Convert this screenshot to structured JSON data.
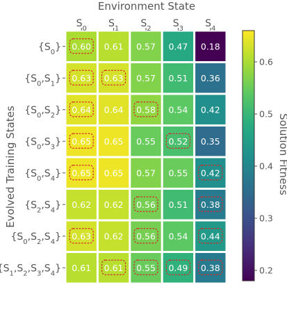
{
  "chart_data": {
    "type": "heatmap",
    "title": "",
    "xlabel": "Environment State",
    "ylabel": "Evolved Training States",
    "colorbar_label": "Solution Fitness",
    "colormap": "viridis",
    "clim": [
      0.18,
      0.66
    ],
    "x_categories": [
      {
        "base": "S",
        "sub": "0"
      },
      {
        "base": "S",
        "sub": "1"
      },
      {
        "base": "S",
        "sub": "2"
      },
      {
        "base": "S",
        "sub": "3"
      },
      {
        "base": "S",
        "sub": "4"
      }
    ],
    "y_categories": [
      {
        "parts": [
          {
            "t": "{S"
          },
          {
            "s": "0"
          },
          {
            "t": "}"
          }
        ]
      },
      {
        "parts": [
          {
            "t": "{S"
          },
          {
            "s": "0"
          },
          {
            "t": ",S"
          },
          {
            "s": "1"
          },
          {
            "t": "}"
          }
        ]
      },
      {
        "parts": [
          {
            "t": "{S"
          },
          {
            "s": "0"
          },
          {
            "t": ",S"
          },
          {
            "s": "2"
          },
          {
            "t": "}"
          }
        ]
      },
      {
        "parts": [
          {
            "t": "{S"
          },
          {
            "s": "0"
          },
          {
            "t": ",S"
          },
          {
            "s": "3"
          },
          {
            "t": "}"
          }
        ]
      },
      {
        "parts": [
          {
            "t": "{S"
          },
          {
            "s": "0"
          },
          {
            "t": ",S"
          },
          {
            "s": "4"
          },
          {
            "t": "}"
          }
        ]
      },
      {
        "parts": [
          {
            "t": "{S"
          },
          {
            "s": "2"
          },
          {
            "t": ",S"
          },
          {
            "s": "4"
          },
          {
            "t": "}"
          }
        ]
      },
      {
        "parts": [
          {
            "t": "{S"
          },
          {
            "s": "0"
          },
          {
            "t": ",S"
          },
          {
            "s": "2"
          },
          {
            "t": ",S"
          },
          {
            "s": "4"
          },
          {
            "t": "}"
          }
        ]
      },
      {
        "parts": [
          {
            "t": "{S"
          },
          {
            "s": "1"
          },
          {
            "t": ",S"
          },
          {
            "s": "2"
          },
          {
            "t": ",S"
          },
          {
            "s": "3"
          },
          {
            "t": ",S"
          },
          {
            "s": "4"
          },
          {
            "t": "}"
          }
        ]
      }
    ],
    "values": [
      [
        0.6,
        0.61,
        0.57,
        0.47,
        0.18
      ],
      [
        0.63,
        0.63,
        0.57,
        0.51,
        0.36
      ],
      [
        0.64,
        0.64,
        0.58,
        0.54,
        0.42
      ],
      [
        0.65,
        0.65,
        0.55,
        0.52,
        0.35
      ],
      [
        0.65,
        0.65,
        0.57,
        0.55,
        0.42
      ],
      [
        0.62,
        0.62,
        0.56,
        0.51,
        0.38
      ],
      [
        0.63,
        0.62,
        0.56,
        0.54,
        0.44
      ],
      [
        0.61,
        0.61,
        0.55,
        0.49,
        0.38
      ]
    ],
    "labels": [
      [
        "0.60",
        "0.61",
        "0.57",
        "0.47",
        "0.18"
      ],
      [
        "0.63",
        "0.63",
        "0.57",
        "0.51",
        "0.36"
      ],
      [
        "0.64",
        "0.64",
        "0.58",
        "0.54",
        "0.42"
      ],
      [
        "0.65",
        "0.65",
        "0.55",
        "0.52",
        "0.35"
      ],
      [
        "0.65",
        "0.65",
        "0.57",
        "0.55",
        "0.42"
      ],
      [
        "0.62",
        "0.62",
        "0.56",
        "0.51",
        "0.38"
      ],
      [
        "0.63",
        "0.62",
        "0.56",
        "0.54",
        "0.44"
      ],
      [
        "0.61",
        "0.61",
        "0.55",
        "0.49",
        "0.38"
      ]
    ],
    "highlighted": [
      [
        true,
        false,
        false,
        false,
        false
      ],
      [
        true,
        true,
        false,
        false,
        false
      ],
      [
        true,
        false,
        true,
        false,
        false
      ],
      [
        true,
        false,
        false,
        true,
        false
      ],
      [
        true,
        false,
        false,
        false,
        true
      ],
      [
        false,
        false,
        true,
        false,
        true
      ],
      [
        true,
        false,
        true,
        false,
        true
      ],
      [
        false,
        true,
        true,
        true,
        true
      ]
    ],
    "highlight_color": "#d62728",
    "colorbar_ticks": [
      "0.2",
      "0.3",
      "0.4",
      "0.5",
      "0.6"
    ],
    "colorbar_tick_values": [
      0.2,
      0.3,
      0.4,
      0.5,
      0.6
    ]
  }
}
